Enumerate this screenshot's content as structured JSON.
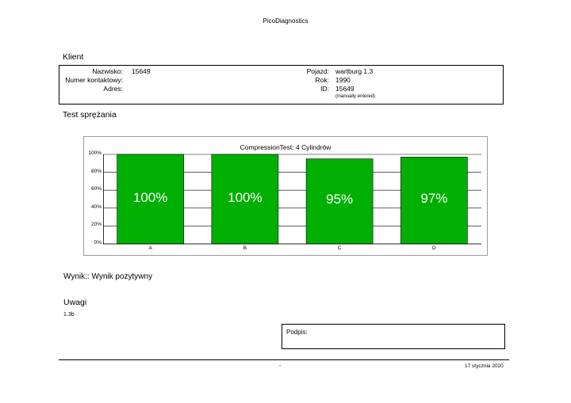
{
  "header": {
    "title": "PicoDiagnostics"
  },
  "client": {
    "section_title": "Klient",
    "left": [
      {
        "label": "Nazwisko:",
        "value": "15649"
      },
      {
        "label": "Numer kontaktowy:",
        "value": ""
      },
      {
        "label": "Adres:",
        "value": ""
      }
    ],
    "right": [
      {
        "label": "Pojazd:",
        "value": "wartburg 1.3"
      },
      {
        "label": "Rok:",
        "value": "1990"
      },
      {
        "label": "ID:",
        "value": "15649"
      }
    ],
    "id_note": "(manually entered)"
  },
  "compression": {
    "section_title": "Test sprężania"
  },
  "chart_data": {
    "type": "bar",
    "title": "CompressionTest: 4 Cylindrów",
    "categories": [
      "A",
      "B",
      "C",
      "D"
    ],
    "values": [
      100,
      100,
      95,
      97
    ],
    "data_labels": [
      "100%",
      "100%",
      "95%",
      "97%"
    ],
    "ylim": [
      0,
      100
    ],
    "yticks": [
      0,
      20,
      40,
      60,
      80,
      100
    ],
    "ytick_labels": [
      "0%",
      "20%",
      "40%",
      "60%",
      "80%",
      "100%"
    ],
    "grid": true,
    "bar_color": "#00b000",
    "xlabel": "",
    "ylabel": ""
  },
  "result": {
    "text": "Wynik:: Wynik pozytywny"
  },
  "remarks": {
    "title": "Uwagi",
    "text": "1.3b"
  },
  "signature": {
    "label": "Podpis:"
  },
  "footer": {
    "page": "-",
    "date": "17 stycznia 2020"
  }
}
